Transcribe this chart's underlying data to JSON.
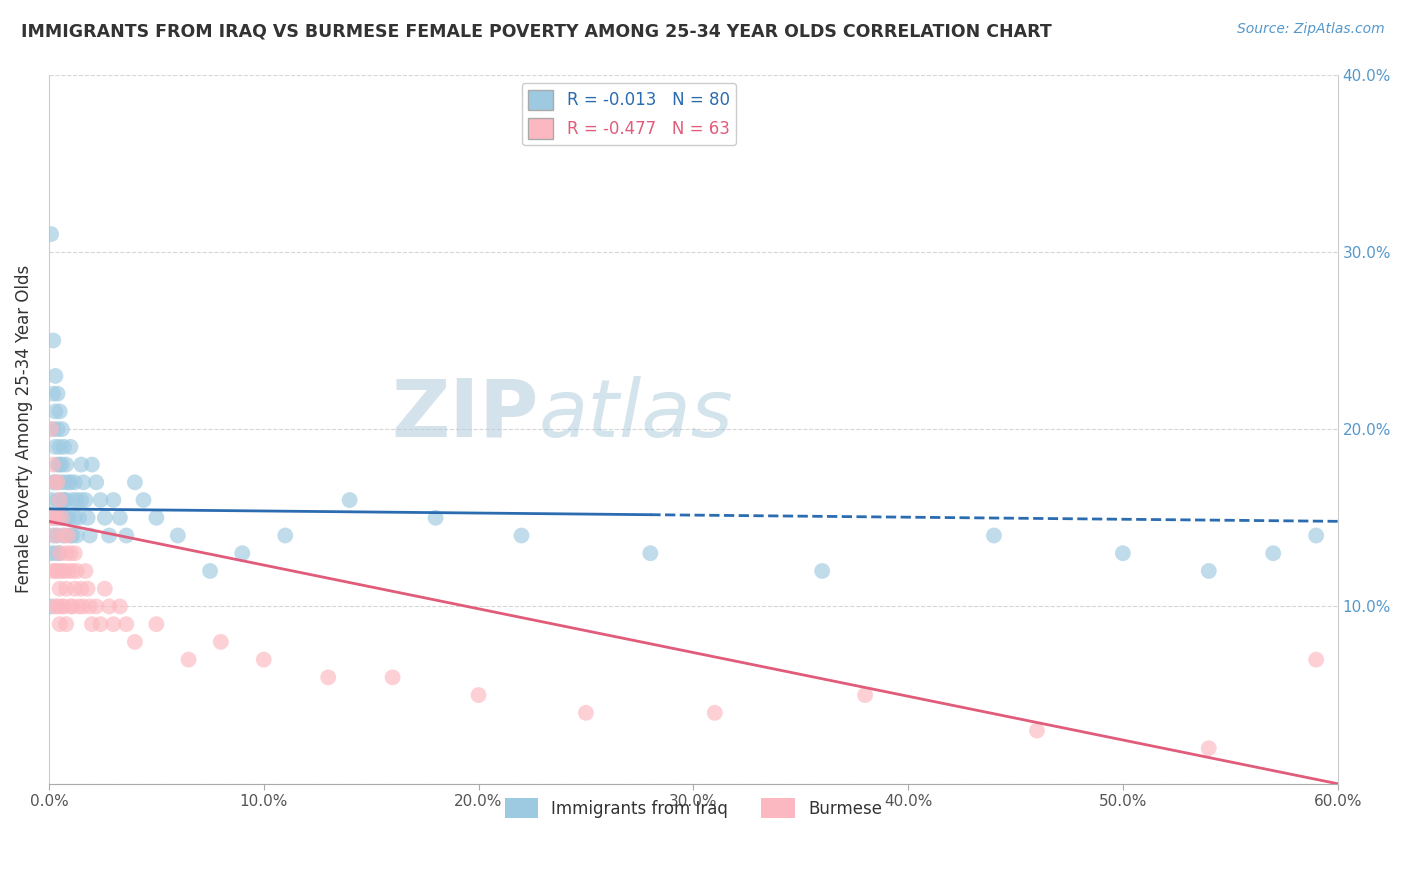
{
  "title": "IMMIGRANTS FROM IRAQ VS BURMESE FEMALE POVERTY AMONG 25-34 YEAR OLDS CORRELATION CHART",
  "source": "Source: ZipAtlas.com",
  "ylabel": "Female Poverty Among 25-34 Year Olds",
  "xlim": [
    0.0,
    0.6
  ],
  "ylim": [
    0.0,
    0.4
  ],
  "xticks": [
    0.0,
    0.1,
    0.2,
    0.3,
    0.4,
    0.5,
    0.6
  ],
  "xticklabels": [
    "0.0%",
    "10.0%",
    "20.0%",
    "30.0%",
    "40.0%",
    "50.0%",
    "60.0%"
  ],
  "yticks": [
    0.0,
    0.1,
    0.2,
    0.3,
    0.4
  ],
  "yticklabels_left": [
    "",
    "",
    "",
    "",
    ""
  ],
  "yticklabels_right": [
    "",
    "10.0%",
    "20.0%",
    "30.0%",
    "40.0%"
  ],
  "iraq_R": -0.013,
  "iraq_N": 80,
  "burmese_R": -0.477,
  "burmese_N": 63,
  "iraq_color": "#9ecae1",
  "burmese_color": "#fcb8c0",
  "iraq_line_color": "#2b6cb0",
  "burmese_line_color": "#e05c7a",
  "watermark": "ZIPatlas",
  "watermark_color": "#b8d0e8",
  "iraq_line_x0": 0.0,
  "iraq_line_x1": 0.6,
  "iraq_line_y0": 0.155,
  "iraq_line_y1": 0.148,
  "iraq_line_solid_end": 0.28,
  "burmese_line_x0": 0.0,
  "burmese_line_x1": 0.6,
  "burmese_line_y0": 0.148,
  "burmese_line_y1": 0.0,
  "iraq_x": [
    0.001,
    0.001,
    0.001,
    0.001,
    0.002,
    0.002,
    0.002,
    0.002,
    0.002,
    0.003,
    0.003,
    0.003,
    0.003,
    0.003,
    0.003,
    0.004,
    0.004,
    0.004,
    0.004,
    0.004,
    0.005,
    0.005,
    0.005,
    0.005,
    0.005,
    0.005,
    0.006,
    0.006,
    0.006,
    0.006,
    0.007,
    0.007,
    0.007,
    0.007,
    0.008,
    0.008,
    0.008,
    0.009,
    0.009,
    0.01,
    0.01,
    0.01,
    0.011,
    0.011,
    0.012,
    0.012,
    0.013,
    0.013,
    0.014,
    0.015,
    0.015,
    0.016,
    0.017,
    0.018,
    0.019,
    0.02,
    0.022,
    0.024,
    0.026,
    0.028,
    0.03,
    0.033,
    0.036,
    0.04,
    0.044,
    0.05,
    0.06,
    0.075,
    0.09,
    0.11,
    0.14,
    0.18,
    0.22,
    0.28,
    0.36,
    0.44,
    0.5,
    0.54,
    0.57,
    0.59
  ],
  "iraq_y": [
    0.31,
    0.16,
    0.13,
    0.1,
    0.25,
    0.22,
    0.2,
    0.17,
    0.14,
    0.23,
    0.21,
    0.19,
    0.17,
    0.15,
    0.13,
    0.22,
    0.2,
    0.18,
    0.16,
    0.14,
    0.21,
    0.19,
    0.18,
    0.17,
    0.15,
    0.13,
    0.2,
    0.18,
    0.16,
    0.15,
    0.19,
    0.17,
    0.16,
    0.14,
    0.18,
    0.16,
    0.15,
    0.17,
    0.15,
    0.19,
    0.17,
    0.14,
    0.16,
    0.14,
    0.17,
    0.15,
    0.16,
    0.14,
    0.15,
    0.18,
    0.16,
    0.17,
    0.16,
    0.15,
    0.14,
    0.18,
    0.17,
    0.16,
    0.15,
    0.14,
    0.16,
    0.15,
    0.14,
    0.17,
    0.16,
    0.15,
    0.14,
    0.12,
    0.13,
    0.14,
    0.16,
    0.15,
    0.14,
    0.13,
    0.12,
    0.14,
    0.13,
    0.12,
    0.13,
    0.14
  ],
  "burmese_x": [
    0.001,
    0.001,
    0.002,
    0.002,
    0.002,
    0.003,
    0.003,
    0.003,
    0.003,
    0.004,
    0.004,
    0.004,
    0.004,
    0.005,
    0.005,
    0.005,
    0.005,
    0.006,
    0.006,
    0.006,
    0.007,
    0.007,
    0.007,
    0.008,
    0.008,
    0.008,
    0.009,
    0.009,
    0.01,
    0.01,
    0.011,
    0.011,
    0.012,
    0.012,
    0.013,
    0.014,
    0.015,
    0.016,
    0.017,
    0.018,
    0.019,
    0.02,
    0.022,
    0.024,
    0.026,
    0.028,
    0.03,
    0.033,
    0.036,
    0.04,
    0.05,
    0.065,
    0.08,
    0.1,
    0.13,
    0.16,
    0.2,
    0.25,
    0.31,
    0.38,
    0.46,
    0.54,
    0.59
  ],
  "burmese_y": [
    0.2,
    0.15,
    0.18,
    0.15,
    0.12,
    0.17,
    0.14,
    0.12,
    0.1,
    0.17,
    0.15,
    0.12,
    0.1,
    0.16,
    0.13,
    0.11,
    0.09,
    0.15,
    0.12,
    0.1,
    0.14,
    0.12,
    0.1,
    0.13,
    0.11,
    0.09,
    0.14,
    0.12,
    0.13,
    0.1,
    0.12,
    0.1,
    0.13,
    0.11,
    0.12,
    0.1,
    0.11,
    0.1,
    0.12,
    0.11,
    0.1,
    0.09,
    0.1,
    0.09,
    0.11,
    0.1,
    0.09,
    0.1,
    0.09,
    0.08,
    0.09,
    0.07,
    0.08,
    0.07,
    0.06,
    0.06,
    0.05,
    0.04,
    0.04,
    0.05,
    0.03,
    0.02,
    0.07
  ]
}
